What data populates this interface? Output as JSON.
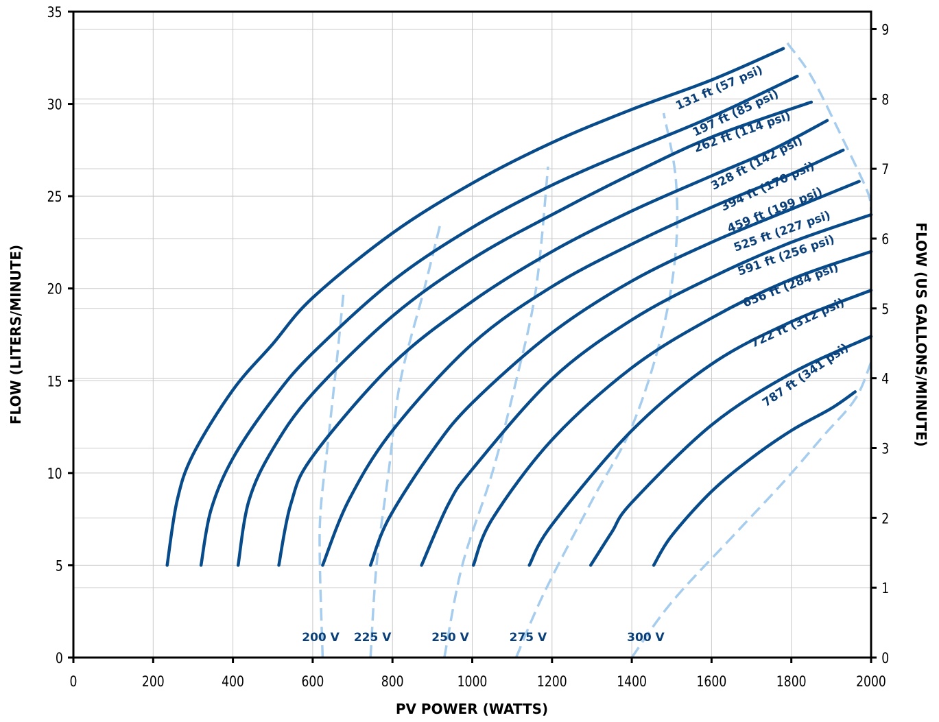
{
  "chart_data": {
    "type": "line",
    "xlabel": "PV POWER (WATTS)",
    "ylabel": "FLOW (LITERS/MINUTE)",
    "y2label": "FLOW (US GALLONS/MINUTE)",
    "xlim": [
      0,
      2000
    ],
    "ylim": [
      0,
      35
    ],
    "y2lim": [
      0,
      9.25
    ],
    "x_ticks": [
      "0",
      "200",
      "400",
      "600",
      "800",
      "1000",
      "1200",
      "1400",
      "1600",
      "1800",
      "2000"
    ],
    "y_ticks": [
      "0",
      "5",
      "10",
      "15",
      "20",
      "25",
      "30",
      "35"
    ],
    "y2_ticks": [
      "0",
      "1",
      "2",
      "3",
      "4",
      "5",
      "6",
      "7",
      "8",
      "9"
    ],
    "grid": true,
    "colors": {
      "series": "#084b8a",
      "voltage": "#a6cdee",
      "label": "#0a3f78"
    },
    "series": [
      {
        "name": "131 ft (57 psi)",
        "label_at": [
          1730,
          31.7
        ],
        "points": [
          [
            235,
            5
          ],
          [
            260,
            8.5
          ],
          [
            300,
            11
          ],
          [
            400,
            14.5
          ],
          [
            500,
            17
          ],
          [
            600,
            19.5
          ],
          [
            800,
            23
          ],
          [
            1000,
            25.7
          ],
          [
            1200,
            27.9
          ],
          [
            1400,
            29.7
          ],
          [
            1600,
            31.3
          ],
          [
            1780,
            33
          ]
        ]
      },
      {
        "name": "197 ft (85 psi)",
        "label_at": [
          1770,
          30.4
        ],
        "points": [
          [
            320,
            5
          ],
          [
            345,
            8
          ],
          [
            400,
            10.8
          ],
          [
            500,
            14
          ],
          [
            600,
            16.5
          ],
          [
            800,
            20.4
          ],
          [
            1000,
            23.3
          ],
          [
            1200,
            25.6
          ],
          [
            1400,
            27.5
          ],
          [
            1600,
            29.3
          ],
          [
            1815,
            31.5
          ]
        ]
      },
      {
        "name": "262 ft (114 psi)",
        "label_at": [
          1800,
          29.2
        ],
        "points": [
          [
            413,
            5
          ],
          [
            440,
            8.5
          ],
          [
            500,
            11.3
          ],
          [
            600,
            14.3
          ],
          [
            800,
            18.5
          ],
          [
            1000,
            21.6
          ],
          [
            1200,
            24
          ],
          [
            1400,
            26.2
          ],
          [
            1600,
            28.2
          ],
          [
            1850,
            30.1
          ]
        ]
      },
      {
        "name": "328 ft (142 psi)",
        "label_at": [
          1830,
          27.9
        ],
        "points": [
          [
            515,
            5
          ],
          [
            545,
            8.3
          ],
          [
            600,
            10.9
          ],
          [
            800,
            15.9
          ],
          [
            1000,
            19.3
          ],
          [
            1200,
            22
          ],
          [
            1400,
            24.2
          ],
          [
            1600,
            26.1
          ],
          [
            1750,
            27.5
          ],
          [
            1890,
            29.1
          ]
        ]
      },
      {
        "name": "394 ft (170 psi)",
        "label_at": [
          1860,
          26.5
        ],
        "points": [
          [
            625,
            5
          ],
          [
            690,
            8.5
          ],
          [
            800,
            12.3
          ],
          [
            1000,
            17
          ],
          [
            1200,
            20.1
          ],
          [
            1400,
            22.4
          ],
          [
            1600,
            24.4
          ],
          [
            1800,
            26.2
          ],
          [
            1930,
            27.5
          ]
        ]
      },
      {
        "name": "459 ft (199 psi)",
        "label_at": [
          1880,
          25.1
        ],
        "points": [
          [
            745,
            5
          ],
          [
            790,
            7.5
          ],
          [
            900,
            11.2
          ],
          [
            1000,
            13.8
          ],
          [
            1200,
            17.6
          ],
          [
            1400,
            20.4
          ],
          [
            1600,
            22.5
          ],
          [
            1800,
            24.3
          ],
          [
            1970,
            25.8
          ]
        ]
      },
      {
        "name": "525 ft (227 psi)",
        "label_at": [
          1900,
          23.8
        ],
        "points": [
          [
            873,
            5
          ],
          [
            940,
            8.3
          ],
          [
            1000,
            10.2
          ],
          [
            1200,
            15.1
          ],
          [
            1400,
            18.3
          ],
          [
            1600,
            20.6
          ],
          [
            1800,
            22.5
          ],
          [
            2000,
            24
          ]
        ]
      },
      {
        "name": "591 ft (256 psi)",
        "label_at": [
          1910,
          22.5
        ],
        "points": [
          [
            1003,
            5
          ],
          [
            1050,
            7.5
          ],
          [
            1200,
            11.8
          ],
          [
            1400,
            15.7
          ],
          [
            1600,
            18.4
          ],
          [
            1800,
            20.5
          ],
          [
            2000,
            22
          ]
        ]
      },
      {
        "name": "656 ft (284 psi)",
        "label_at": [
          1920,
          21.0
        ],
        "points": [
          [
            1143,
            5
          ],
          [
            1200,
            7.2
          ],
          [
            1400,
            12.3
          ],
          [
            1600,
            15.9
          ],
          [
            1800,
            18.2
          ],
          [
            2000,
            19.9
          ]
        ]
      },
      {
        "name": "722 ft (312 psi)",
        "label_at": [
          1935,
          19.1
        ],
        "points": [
          [
            1297,
            5
          ],
          [
            1350,
            6.8
          ],
          [
            1400,
            8.4
          ],
          [
            1600,
            12.6
          ],
          [
            1800,
            15.4
          ],
          [
            2000,
            17.4
          ]
        ]
      },
      {
        "name": "787 ft (341 psi)",
        "label_at": [
          1945,
          16.7
        ],
        "points": [
          [
            1455,
            5
          ],
          [
            1500,
            6.6
          ],
          [
            1600,
            9
          ],
          [
            1700,
            10.8
          ],
          [
            1800,
            12.3
          ],
          [
            1900,
            13.5
          ],
          [
            1960,
            14.4
          ]
        ]
      }
    ],
    "voltage_lines": [
      {
        "name": "200 V",
        "label_at": [
          620,
          0.9
        ],
        "points": [
          [
            625,
            0
          ],
          [
            618,
            5
          ],
          [
            620,
            8
          ],
          [
            640,
            12
          ],
          [
            660,
            16
          ],
          [
            677,
            19.7
          ]
        ]
      },
      {
        "name": "225 V",
        "label_at": [
          750,
          0.9
        ],
        "points": [
          [
            745,
            0
          ],
          [
            760,
            5
          ],
          [
            790,
            10
          ],
          [
            820,
            15
          ],
          [
            880,
            20
          ],
          [
            920,
            23.5
          ]
        ]
      },
      {
        "name": "250 V",
        "label_at": [
          945,
          0.9
        ],
        "points": [
          [
            930,
            0
          ],
          [
            975,
            5
          ],
          [
            1050,
            10
          ],
          [
            1110,
            15
          ],
          [
            1160,
            20
          ],
          [
            1190,
            26.6
          ]
        ]
      },
      {
        "name": "275 V",
        "label_at": [
          1140,
          0.9
        ],
        "points": [
          [
            1110,
            0
          ],
          [
            1180,
            3.5
          ],
          [
            1300,
            8.5
          ],
          [
            1400,
            12.5
          ],
          [
            1475,
            17.5
          ],
          [
            1510,
            22
          ],
          [
            1510,
            26
          ],
          [
            1480,
            29.5
          ]
        ]
      },
      {
        "name": "300 V",
        "label_at": [
          1435,
          0.9
        ],
        "points": [
          [
            1400,
            0
          ],
          [
            1500,
            3
          ],
          [
            1650,
            6.5
          ],
          [
            1780,
            9.5
          ],
          [
            1880,
            12
          ],
          [
            1960,
            14
          ],
          [
            2000,
            16
          ]
        ]
      },
      {
        "name": "",
        "points": [
          [
            1790,
            33.3
          ],
          [
            1850,
            31.5
          ],
          [
            1920,
            28.5
          ],
          [
            1990,
            25.3
          ],
          [
            2000,
            24.2
          ]
        ]
      }
    ]
  }
}
